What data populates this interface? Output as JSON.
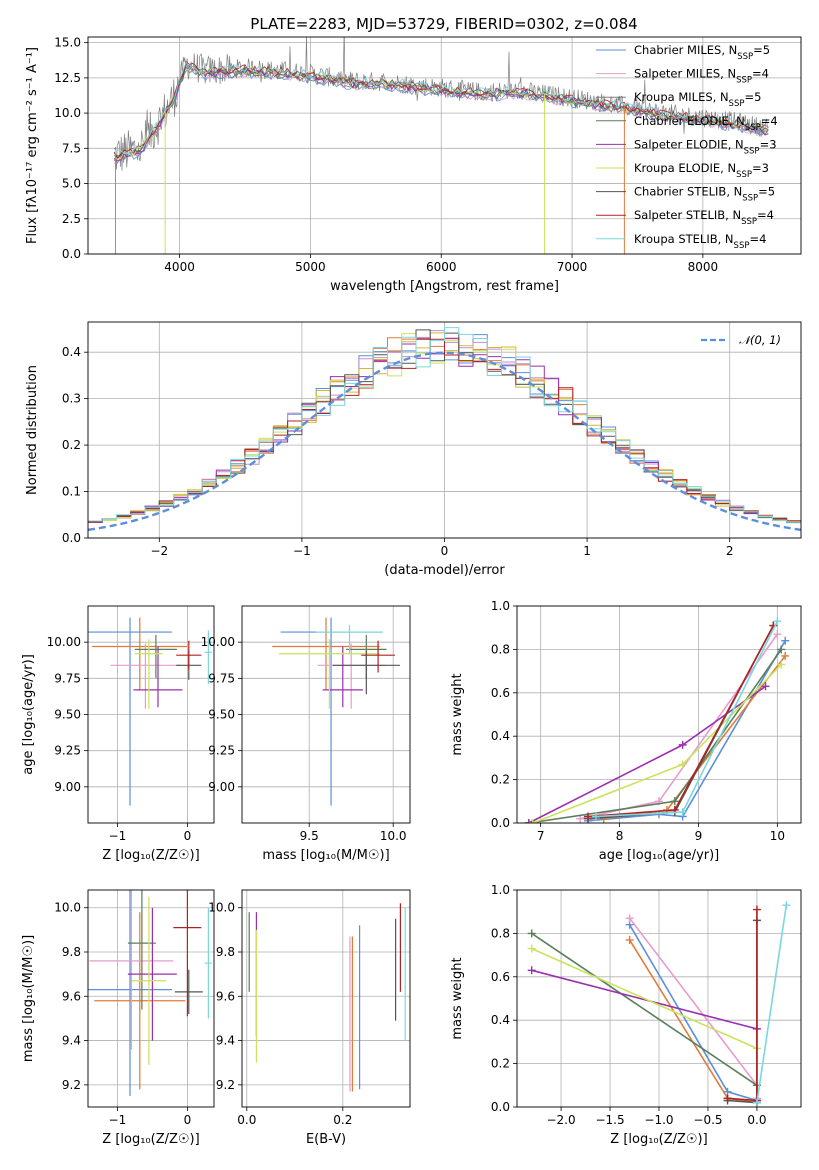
{
  "figure": {
    "title": "PLATE=2283, MJD=53729, FIBERID=0302, z=0.084"
  },
  "colors": [
    "#5b8fd9",
    "#e07b39",
    "#c28ed0",
    "#d9b43b",
    "#9b2fae",
    "#c9e35b",
    "#555555",
    "#b22222",
    "#7ad7df"
  ],
  "chart_data": [
    {
      "id": "spectrum",
      "type": "line",
      "title": "PLATE=2283, MJD=53729, FIBERID=0302, z=0.084",
      "xlabel": "wavelength [Angstrom, rest frame]",
      "ylabel": "Flux [fλ10⁻¹⁷ erg cm⁻² s⁻¹ A⁻¹]",
      "xlim": [
        3300,
        8750
      ],
      "ylim": [
        0,
        15.4
      ],
      "xticks": [
        4000,
        5000,
        6000,
        7000,
        8000
      ],
      "yticks": [
        0.0,
        2.5,
        5.0,
        7.5,
        10.0,
        12.5,
        15.0
      ],
      "data_envelope": {
        "x": [
          3500,
          3700,
          3850,
          3950,
          4050,
          4200,
          4500,
          4800,
          5000,
          5300,
          5600,
          6000,
          6300,
          6600,
          6900,
          7200,
          7400,
          7700,
          8000,
          8300,
          8500
        ],
        "y": [
          7.0,
          7.5,
          9.5,
          11.0,
          13.5,
          13.0,
          13.2,
          13.0,
          12.8,
          12.3,
          12.2,
          11.8,
          11.5,
          11.6,
          11.2,
          10.8,
          10.5,
          10.0,
          9.7,
          9.3,
          8.9
        ]
      },
      "legend": [
        {
          "label": "Chabrier MILES, N",
          "sub": "SSP",
          "suffix": "=5",
          "color": "#5b8fd9"
        },
        {
          "label": "Salpeter MILES, N",
          "sub": "SSP",
          "suffix": "=4",
          "color": "#e79bd0"
        },
        {
          "label": "Kroupa MILES, N",
          "sub": "SSP",
          "suffix": "=5",
          "color": "#7f7f7f"
        },
        {
          "label": "Chabrier ELODIE, N",
          "sub": "SSP",
          "suffix": "=4",
          "color": "#5a7f5a"
        },
        {
          "label": "Salpeter ELODIE, N",
          "sub": "SSP",
          "suffix": "=3",
          "color": "#9b2fae"
        },
        {
          "label": "Kroupa ELODIE, N",
          "sub": "SSP",
          "suffix": "=3",
          "color": "#c9e35b"
        },
        {
          "label": "Chabrier STELIB, N",
          "sub": "SSP",
          "suffix": "=5",
          "color": "#555555"
        },
        {
          "label": "Salpeter STELIB, N",
          "sub": "SSP",
          "suffix": "=4",
          "color": "#b22222"
        },
        {
          "label": "Kroupa STELIB, N",
          "sub": "SSP",
          "suffix": "=4",
          "color": "#7ad7df"
        }
      ]
    },
    {
      "id": "residuals",
      "type": "line",
      "xlabel": "(data-model)/error",
      "ylabel": "Normed distribution",
      "xlim": [
        -2.5,
        2.5
      ],
      "ylim": [
        0,
        0.465
      ],
      "xticks": [
        -2,
        -1,
        0,
        1,
        2
      ],
      "yticks": [
        0.0,
        0.1,
        0.2,
        0.3,
        0.4
      ],
      "legend": [
        {
          "label": "𝒩(0, 1)",
          "color": "#5b8fd9"
        }
      ],
      "bin_width": 0.1
    },
    {
      "id": "age-vs-Z",
      "type": "scatter",
      "xlabel": "Z [log₁₀(Z/Z☉)]",
      "ylabel": "age  [log₁₀(age/yr)]",
      "xlim": [
        -1.42,
        0.38
      ],
      "ylim": [
        8.75,
        10.25
      ],
      "xticks": [
        -1,
        0
      ],
      "yticks": [
        9.0,
        9.25,
        9.5,
        9.75,
        10.0
      ],
      "points": [
        {
          "x": -0.82,
          "y": 10.07,
          "xerr": 0.6,
          "yerr_lo": 1.2,
          "yerr_hi": 0.1,
          "color": "#5b8fd9"
        },
        {
          "x": -0.68,
          "y": 9.97,
          "xerr": 0.68,
          "yerr_lo": 0.3,
          "yerr_hi": 0.2,
          "color": "#e07b39"
        },
        {
          "x": -0.6,
          "y": 9.84,
          "xerr": 0.5,
          "yerr_lo": 0.3,
          "yerr_hi": 0.15,
          "color": "#e79bd0"
        },
        {
          "x": -0.45,
          "y": 9.95,
          "xerr": 0.3,
          "yerr_lo": 0.2,
          "yerr_hi": 0.1,
          "color": "#5a7f5a"
        },
        {
          "x": -0.42,
          "y": 9.67,
          "xerr": 0.35,
          "yerr_lo": 0.12,
          "yerr_hi": 0.3,
          "color": "#9b2fae"
        },
        {
          "x": -0.55,
          "y": 9.92,
          "xerr": 0.2,
          "yerr_lo": 0.38,
          "yerr_hi": 0.1,
          "color": "#c9e35b"
        },
        {
          "x": 0.02,
          "y": 9.84,
          "xerr": 0.18,
          "yerr_lo": 0.1,
          "yerr_hi": 0.1,
          "color": "#555555"
        },
        {
          "x": 0.02,
          "y": 9.91,
          "xerr": 0.18,
          "yerr_lo": 0.1,
          "yerr_hi": 0.1,
          "color": "#b22222"
        },
        {
          "x": 0.3,
          "y": 9.93,
          "xerr": 0.05,
          "yerr_lo": 0.22,
          "yerr_hi": 0.15,
          "color": "#7ad7df"
        }
      ]
    },
    {
      "id": "age-vs-mass",
      "type": "scatter",
      "xlabel": "mass [log₁₀(M/M☉)]",
      "xlim": [
        9.1,
        10.1
      ],
      "ylim": [
        8.75,
        10.25
      ],
      "xticks": [
        9.5,
        10.0
      ],
      "yticks": [
        9.0,
        9.25,
        9.5,
        9.75,
        10.0
      ],
      "points": [
        {
          "x": 9.63,
          "y": 10.07,
          "xerr": 0.3,
          "yerr_lo": 1.2,
          "yerr_hi": 0.1,
          "color": "#5b8fd9"
        },
        {
          "x": 9.6,
          "y": 9.97,
          "xerr": 0.32,
          "yerr_lo": 0.3,
          "yerr_hi": 0.2,
          "color": "#e07b39"
        },
        {
          "x": 9.75,
          "y": 9.84,
          "xerr": 0.2,
          "yerr_lo": 0.3,
          "yerr_hi": 0.15,
          "color": "#e79bd0"
        },
        {
          "x": 9.84,
          "y": 9.95,
          "xerr": 0.12,
          "yerr_lo": 0.2,
          "yerr_hi": 0.1,
          "color": "#5a7f5a"
        },
        {
          "x": 9.7,
          "y": 9.67,
          "xerr": 0.12,
          "yerr_lo": 0.12,
          "yerr_hi": 0.3,
          "color": "#9b2fae"
        },
        {
          "x": 9.62,
          "y": 9.92,
          "xerr": 0.3,
          "yerr_lo": 0.38,
          "yerr_hi": 0.1,
          "color": "#c9e35b"
        },
        {
          "x": 9.84,
          "y": 9.84,
          "xerr": 0.2,
          "yerr_lo": 0.2,
          "yerr_hi": 0.1,
          "color": "#555555"
        },
        {
          "x": 9.91,
          "y": 9.91,
          "xerr": 0.1,
          "yerr_lo": 0.12,
          "yerr_hi": 0.1,
          "color": "#b22222"
        },
        {
          "x": 9.74,
          "y": 10.07,
          "xerr": 0.2,
          "yerr_lo": 0.15,
          "yerr_hi": 0.05,
          "color": "#7ad7df"
        }
      ]
    },
    {
      "id": "massweight-vs-age",
      "type": "line",
      "xlabel": "age  [log₁₀(age/yr)]",
      "ylabel": "mass weight",
      "xlim": [
        6.7,
        10.3
      ],
      "ylim": [
        0,
        1.0
      ],
      "xticks": [
        7,
        8,
        9,
        10
      ],
      "yticks": [
        0.0,
        0.2,
        0.4,
        0.6,
        0.8,
        1.0
      ],
      "series": [
        {
          "color": "#5b8fd9",
          "x": [
            7.6,
            8.5,
            8.8,
            10.1
          ],
          "y": [
            0.01,
            0.04,
            0.03,
            0.84
          ]
        },
        {
          "color": "#e07b39",
          "x": [
            7.8,
            8.6,
            10.1
          ],
          "y": [
            0.02,
            0.06,
            0.77
          ]
        },
        {
          "color": "#e79bd0",
          "x": [
            7.5,
            8.5,
            10.0
          ],
          "y": [
            0.02,
            0.1,
            0.87
          ]
        },
        {
          "color": "#5a7f5a",
          "x": [
            6.85,
            8.7,
            10.05
          ],
          "y": [
            0.0,
            0.1,
            0.8
          ]
        },
        {
          "color": "#9b2fae",
          "x": [
            6.85,
            8.8,
            9.85
          ],
          "y": [
            0.0,
            0.36,
            0.63
          ]
        },
        {
          "color": "#c9e35b",
          "x": [
            6.9,
            8.8,
            10.05
          ],
          "y": [
            0.0,
            0.27,
            0.73
          ]
        },
        {
          "color": "#555555",
          "x": [
            7.6,
            8.7,
            9.95
          ],
          "y": [
            0.02,
            0.05,
            0.91
          ]
        },
        {
          "color": "#b22222",
          "x": [
            7.6,
            8.7,
            9.95
          ],
          "y": [
            0.03,
            0.06,
            0.91
          ]
        },
        {
          "color": "#7ad7df",
          "x": [
            7.7,
            8.8,
            10.0
          ],
          "y": [
            0.03,
            0.05,
            0.93
          ]
        }
      ]
    },
    {
      "id": "mass-vs-Z",
      "type": "scatter",
      "xlabel": "Z [log₁₀(Z/Z☉)]",
      "ylabel": "mass [log₁₀(M/M☉)]",
      "xlim": [
        -1.42,
        0.38
      ],
      "ylim": [
        9.1,
        10.08
      ],
      "xticks": [
        -1,
        0
      ],
      "yticks": [
        9.2,
        9.4,
        9.6,
        9.8,
        10.0
      ],
      "points": [
        {
          "x": -0.82,
          "y": 9.63,
          "xerr": 0.6,
          "yerr": 0.48,
          "color": "#5b8fd9"
        },
        {
          "x": -0.68,
          "y": 9.58,
          "xerr": 0.65,
          "yerr": 0.4,
          "color": "#e07b39"
        },
        {
          "x": -0.8,
          "y": 9.76,
          "xerr": 0.6,
          "yerr": 0.4,
          "color": "#e79bd0"
        },
        {
          "x": -0.65,
          "y": 9.84,
          "xerr": 0.2,
          "yerr": 0.3,
          "color": "#5a7f5a"
        },
        {
          "x": -0.5,
          "y": 9.7,
          "xerr": 0.35,
          "yerr": 0.3,
          "color": "#9b2fae"
        },
        {
          "x": -0.55,
          "y": 9.67,
          "xerr": 0.25,
          "yerr": 0.38,
          "color": "#c9e35b"
        },
        {
          "x": 0.02,
          "y": 9.62,
          "xerr": 0.2,
          "yerr": 0.1,
          "color": "#555555"
        },
        {
          "x": 0.0,
          "y": 9.91,
          "xerr": 0.2,
          "yerr": 0.4,
          "color": "#b22222"
        },
        {
          "x": 0.3,
          "y": 9.75,
          "xerr": 0.05,
          "yerr": 0.25,
          "color": "#7ad7df"
        }
      ]
    },
    {
      "id": "mass-vs-EBV",
      "type": "scatter",
      "xlabel": "E(B-V)",
      "xlim": [
        -0.01,
        0.34
      ],
      "ylim": [
        9.1,
        10.08
      ],
      "xticks": [
        0.0,
        0.2
      ],
      "yticks": [
        9.2,
        9.4,
        9.6,
        9.8,
        10.0
      ],
      "points": [
        {
          "x": 0.005,
          "y": 9.8,
          "yerr": 0.18,
          "color": "#5a7f5a"
        },
        {
          "x": 0.02,
          "y": 9.7,
          "yerr": 0.28,
          "color": "#9b2fae"
        },
        {
          "x": 0.02,
          "y": 9.6,
          "yerr": 0.3,
          "color": "#c9e35b"
        },
        {
          "x": 0.215,
          "y": 9.52,
          "yerr": 0.35,
          "color": "#e79bd0"
        },
        {
          "x": 0.22,
          "y": 9.52,
          "yerr": 0.35,
          "color": "#e07b39"
        },
        {
          "x": 0.235,
          "y": 9.55,
          "yerr": 0.37,
          "color": "#5b8fd9"
        },
        {
          "x": 0.31,
          "y": 9.72,
          "yerr": 0.23,
          "color": "#555555"
        },
        {
          "x": 0.32,
          "y": 9.82,
          "yerr": 0.2,
          "color": "#b22222"
        },
        {
          "x": 0.33,
          "y": 9.7,
          "yerr": 0.3,
          "color": "#7ad7df"
        }
      ]
    },
    {
      "id": "massweight-vs-Z",
      "type": "line",
      "xlabel": "Z [log₁₀(Z/Z☉)]",
      "ylabel": "mass weight",
      "xlim": [
        -2.45,
        0.45
      ],
      "ylim": [
        0,
        1.0
      ],
      "xticks": [
        -2.0,
        -1.5,
        -1.0,
        -0.5,
        0.0
      ],
      "yticks": [
        0.0,
        0.2,
        0.4,
        0.6,
        0.8,
        1.0
      ],
      "series": [
        {
          "color": "#5b8fd9",
          "x": [
            -1.3,
            -0.3,
            0.0,
            0.0
          ],
          "y": [
            0.84,
            0.07,
            0.03,
            0.03
          ]
        },
        {
          "color": "#e07b39",
          "x": [
            -1.3,
            -0.3,
            0.0
          ],
          "y": [
            0.77,
            0.04,
            0.02
          ]
        },
        {
          "color": "#e79bd0",
          "x": [
            -1.3,
            0.0,
            0.0
          ],
          "y": [
            0.87,
            0.1,
            0.04
          ]
        },
        {
          "color": "#5a7f5a",
          "x": [
            -2.3,
            0.0,
            0.0
          ],
          "y": [
            0.8,
            0.1,
            0.02
          ]
        },
        {
          "color": "#9b2fae",
          "x": [
            -2.3,
            0.0
          ],
          "y": [
            0.63,
            0.36
          ]
        },
        {
          "color": "#c9e35b",
          "x": [
            -2.3,
            0.0
          ],
          "y": [
            0.73,
            0.27
          ]
        },
        {
          "color": "#555555",
          "x": [
            -0.3,
            0.0,
            0.0
          ],
          "y": [
            0.03,
            0.02,
            0.86
          ]
        },
        {
          "color": "#b22222",
          "x": [
            -0.3,
            0.0,
            0.0
          ],
          "y": [
            0.04,
            0.03,
            0.91
          ]
        },
        {
          "color": "#7ad7df",
          "x": [
            0.0,
            0.3
          ],
          "y": [
            0.02,
            0.93
          ]
        }
      ]
    }
  ]
}
